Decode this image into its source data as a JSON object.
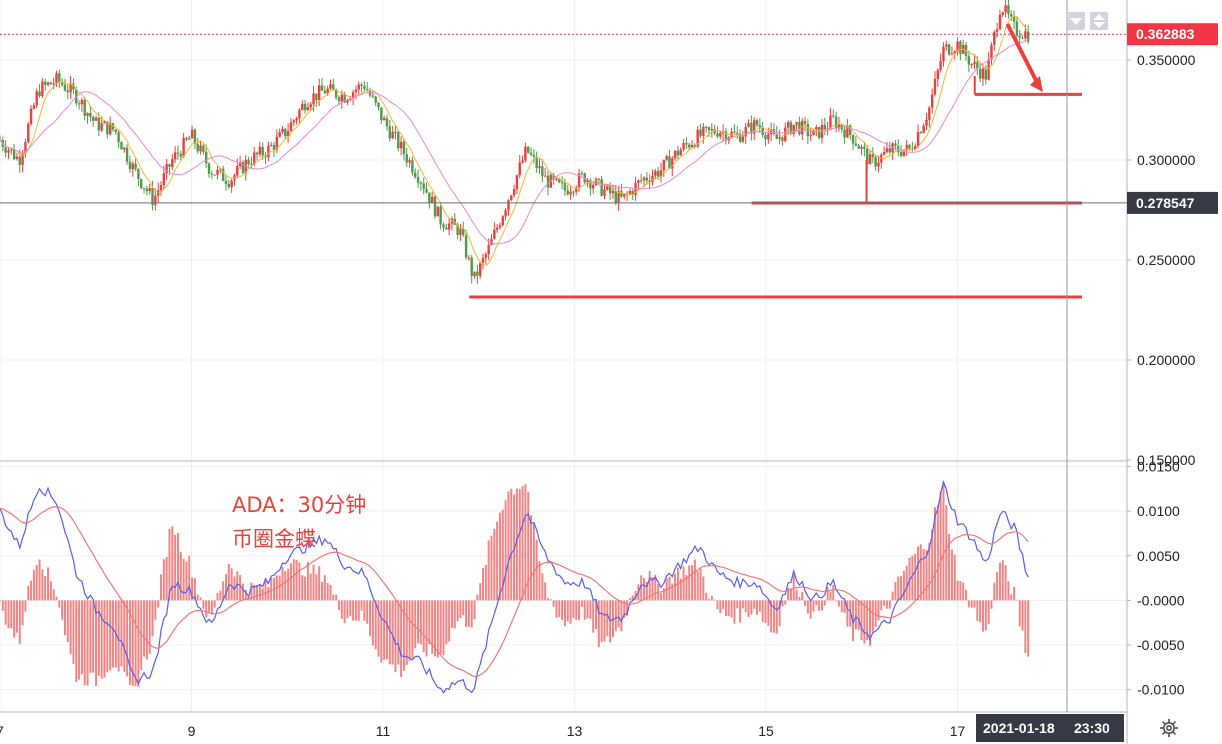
{
  "chart_data": [
    {
      "type": "candlestick",
      "title": "",
      "ylim": [
        0.15,
        0.38
      ],
      "y_ticks": [
        "0.350000",
        "0.300000",
        "0.250000",
        "0.200000",
        "0.150000"
      ],
      "y_tick_values": [
        0.35,
        0.3,
        0.25,
        0.2,
        0.15
      ],
      "x_ticks": [
        "7",
        "9",
        "11",
        "13",
        "15",
        "17"
      ],
      "x_tick_values": [
        7,
        9,
        11,
        13,
        15,
        17
      ],
      "xlim": [
        7.0,
        18.77
      ],
      "grid": true,
      "price_path": [
        [
          7.0,
          0.31
        ],
        [
          7.2,
          0.3
        ],
        [
          7.4,
          0.335
        ],
        [
          7.6,
          0.34
        ],
        [
          7.8,
          0.332
        ],
        [
          8.0,
          0.318
        ],
        [
          8.2,
          0.315
        ],
        [
          8.4,
          0.295
        ],
        [
          8.6,
          0.28
        ],
        [
          8.8,
          0.3
        ],
        [
          9.0,
          0.312
        ],
        [
          9.2,
          0.295
        ],
        [
          9.4,
          0.29
        ],
        [
          9.6,
          0.3
        ],
        [
          9.8,
          0.305
        ],
        [
          10.0,
          0.315
        ],
        [
          10.2,
          0.33
        ],
        [
          10.4,
          0.335
        ],
        [
          10.6,
          0.332
        ],
        [
          10.8,
          0.338
        ],
        [
          11.0,
          0.32
        ],
        [
          11.2,
          0.305
        ],
        [
          11.4,
          0.29
        ],
        [
          11.6,
          0.27
        ],
        [
          11.8,
          0.265
        ],
        [
          11.95,
          0.24
        ],
        [
          12.1,
          0.255
        ],
        [
          12.3,
          0.28
        ],
        [
          12.5,
          0.305
        ],
        [
          12.7,
          0.29
        ],
        [
          12.9,
          0.285
        ],
        [
          13.1,
          0.292
        ],
        [
          13.3,
          0.285
        ],
        [
          13.5,
          0.28
        ],
        [
          13.7,
          0.29
        ],
        [
          13.9,
          0.295
        ],
        [
          14.1,
          0.305
        ],
        [
          14.3,
          0.312
        ],
        [
          14.5,
          0.315
        ],
        [
          14.7,
          0.312
        ],
        [
          14.9,
          0.318
        ],
        [
          15.1,
          0.31
        ],
        [
          15.3,
          0.318
        ],
        [
          15.5,
          0.312
        ],
        [
          15.7,
          0.32
        ],
        [
          15.9,
          0.312
        ],
        [
          16.1,
          0.298
        ],
        [
          16.3,
          0.305
        ],
        [
          16.5,
          0.305
        ],
        [
          16.7,
          0.325
        ],
        [
          16.85,
          0.355
        ],
        [
          17.0,
          0.358
        ],
        [
          17.15,
          0.348
        ],
        [
          17.3,
          0.342
        ],
        [
          17.45,
          0.378
        ],
        [
          17.6,
          0.365
        ],
        [
          17.75,
          0.362883
        ]
      ],
      "series": [
        {
          "name": "",
          "type": "support-line",
          "value": 0.2315,
          "x_start": 11.9,
          "x_end": 18.77
        },
        {
          "name": "",
          "type": "support-line",
          "value": 0.2785,
          "x_start": 14.85,
          "x_end": 18.77
        },
        {
          "name": "",
          "type": "support-line",
          "value": 0.3328,
          "x_start": 17.18,
          "x_end": 18.77
        }
      ],
      "current_price": "0.362883",
      "crosshair_price": "0.278547"
    },
    {
      "type": "line",
      "title": "",
      "ylim": [
        -0.0125,
        0.0155
      ],
      "y_ticks": [
        "0.0150",
        "0.0100",
        "0.0050",
        "-0.0000",
        "-0.0050",
        "-0.0100"
      ],
      "y_tick_values": [
        0.015,
        0.01,
        0.005,
        0.0,
        -0.005,
        -0.01
      ],
      "x_ticks": [
        "7",
        "9",
        "11",
        "13",
        "15",
        "17"
      ],
      "x_tick_values": [
        7,
        9,
        11,
        13,
        15,
        17
      ],
      "xlim": [
        7.0,
        18.77
      ],
      "macd_path": [
        [
          7.0,
          0.01
        ],
        [
          7.2,
          0.006
        ],
        [
          7.4,
          0.013
        ],
        [
          7.6,
          0.011
        ],
        [
          7.8,
          0.003
        ],
        [
          8.0,
          -0.001
        ],
        [
          8.2,
          -0.003
        ],
        [
          8.4,
          -0.009
        ],
        [
          8.6,
          -0.008
        ],
        [
          8.8,
          0.002
        ],
        [
          9.0,
          0.001
        ],
        [
          9.2,
          -0.003
        ],
        [
          9.4,
          0.002
        ],
        [
          9.6,
          0.001
        ],
        [
          9.8,
          0.002
        ],
        [
          10.0,
          0.005
        ],
        [
          10.2,
          0.006
        ],
        [
          10.4,
          0.007
        ],
        [
          10.6,
          0.004
        ],
        [
          10.8,
          0.003
        ],
        [
          11.0,
          -0.002
        ],
        [
          11.2,
          -0.006
        ],
        [
          11.4,
          -0.007
        ],
        [
          11.6,
          -0.01
        ],
        [
          11.8,
          -0.009
        ],
        [
          11.95,
          -0.01
        ],
        [
          12.1,
          -0.004
        ],
        [
          12.3,
          0.004
        ],
        [
          12.5,
          0.01
        ],
        [
          12.7,
          0.005
        ],
        [
          12.9,
          0.002
        ],
        [
          13.1,
          0.002
        ],
        [
          13.3,
          -0.002
        ],
        [
          13.5,
          -0.002
        ],
        [
          13.7,
          0.002
        ],
        [
          13.9,
          0.002
        ],
        [
          14.1,
          0.004
        ],
        [
          14.3,
          0.006
        ],
        [
          14.5,
          0.003
        ],
        [
          14.7,
          0.002
        ],
        [
          14.9,
          0.002
        ],
        [
          15.1,
          -0.001
        ],
        [
          15.3,
          0.003
        ],
        [
          15.5,
          0.0
        ],
        [
          15.7,
          0.002
        ],
        [
          15.9,
          -0.002
        ],
        [
          16.1,
          -0.004
        ],
        [
          16.3,
          -0.002
        ],
        [
          16.5,
          0.002
        ],
        [
          16.7,
          0.006
        ],
        [
          16.85,
          0.013
        ],
        [
          17.0,
          0.009
        ],
        [
          17.15,
          0.007
        ],
        [
          17.3,
          0.004
        ],
        [
          17.45,
          0.01
        ],
        [
          17.6,
          0.008
        ],
        [
          17.75,
          0.002
        ]
      ],
      "signal_smoothing": 0.35
    }
  ],
  "annotation": {
    "line1": "ADA：30分钟",
    "line2": "币圈金蝶"
  },
  "time_axis": {
    "date_label": "2021-01-18",
    "time_label": "23:30"
  },
  "colors": {
    "up": "#e8413e",
    "down": "#4f9b4b",
    "ma_fast": "#f2b636",
    "ma_slow": "#e58ad3",
    "macd": "#5b5ee6",
    "signal": "#f07878",
    "support": "#e8413e",
    "badge_price": "#f23645",
    "badge_crosshair": "#363a45",
    "grid": "#eef0f3",
    "axis": "#b2b5be"
  },
  "icons": {
    "settings": "gear-icon",
    "scale_buttons": [
      "scale-down-icon",
      "scale-updown-icon"
    ]
  }
}
